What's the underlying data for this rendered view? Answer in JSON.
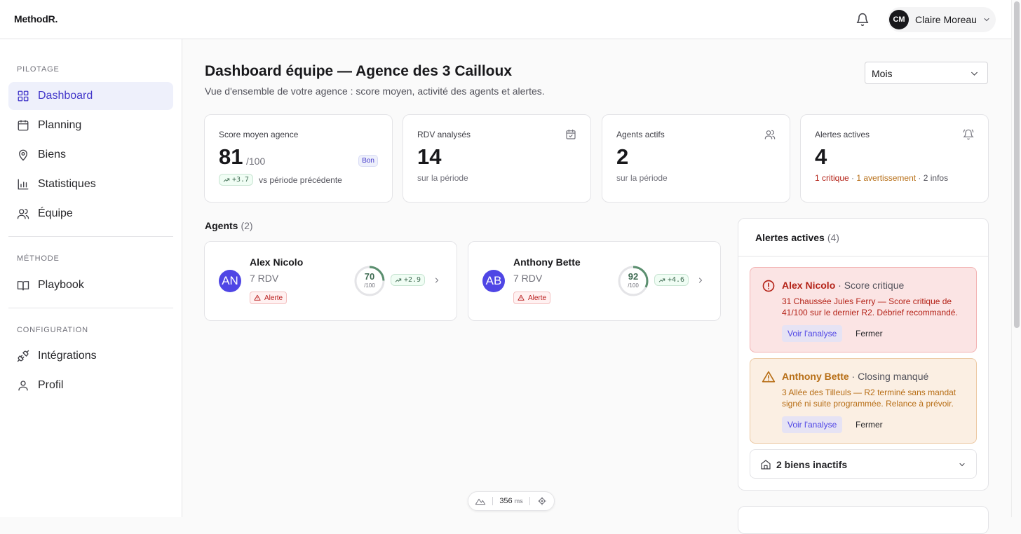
{
  "app": {
    "logo": "MethodR."
  },
  "user": {
    "initials": "CM",
    "name": "Claire Moreau"
  },
  "sidebar": {
    "sections": [
      {
        "label": "PILOTAGE"
      },
      {
        "label": "MÉTHODE"
      },
      {
        "label": "CONFIGURATION"
      }
    ],
    "items": [
      {
        "label": "Dashboard",
        "icon": "grid-icon",
        "active": true
      },
      {
        "label": "Planning",
        "icon": "calendar-icon"
      },
      {
        "label": "Biens",
        "icon": "map-pin-icon"
      },
      {
        "label": "Statistiques",
        "icon": "bar-chart-icon"
      },
      {
        "label": "Équipe",
        "icon": "users-icon"
      },
      {
        "label": "Playbook",
        "icon": "book-icon"
      },
      {
        "label": "Intégrations",
        "icon": "plug-icon"
      },
      {
        "label": "Profil",
        "icon": "user-icon"
      }
    ]
  },
  "page": {
    "title": "Dashboard équipe — Agence des 3 Cailloux",
    "subtitle": "Vue d'ensemble de votre agence : score moyen, activité des agents et alertes.",
    "period": "Mois"
  },
  "kpis": {
    "score": {
      "label": "Score moyen agence",
      "value": "81",
      "unit": "/100",
      "badge": "Bon",
      "trend": "+3.7",
      "trend_text": "vs période précédente"
    },
    "rdv": {
      "label": "RDV analysés",
      "value": "14",
      "sub": "sur la période"
    },
    "agents": {
      "label": "Agents actifs",
      "value": "2",
      "sub": "sur la période"
    },
    "alerts": {
      "label": "Alertes actives",
      "value": "4",
      "crit": "1 critique",
      "sep1": " · ",
      "warn": "1 avertissement",
      "sep2": " · ",
      "info": "2 infos"
    }
  },
  "agents": {
    "heading": "Agents",
    "count": "(2)",
    "list": [
      {
        "initials": "AN",
        "name": "Alex Nicolo",
        "rdv": "7 RDV",
        "alert": "Alerte",
        "score": "70",
        "score_unit": "/100",
        "score_fraction": 0.7,
        "trend": "+2.9"
      },
      {
        "initials": "AB",
        "name": "Anthony Bette",
        "rdv": "7 RDV",
        "alert": "Alerte",
        "score": "92",
        "score_unit": "/100",
        "score_fraction": 0.92,
        "trend": "+4.6"
      }
    ]
  },
  "alerts": {
    "heading": "Alertes actives",
    "count": "(4)",
    "items": [
      {
        "who": "Alex Nicolo",
        "kind": " · Score critique",
        "desc": "31 Chaussée Jules Ferry — Score critique de 41/100 sur le dernier R2. Débrief recommandé.",
        "action": "Voir l'analyse",
        "close": "Fermer"
      },
      {
        "who": "Anthony Bette",
        "kind": " · Closing manqué",
        "desc": "3 Allée des Tilleuls — R2 terminé sans mandat signé ni suite programmée. Relance à prévoir.",
        "action": "Voir l'analyse",
        "close": "Fermer"
      }
    ],
    "inactive": "2 biens inactifs"
  },
  "perf": {
    "value": "356",
    "unit": "ms"
  },
  "colors": {
    "accent": "#4f46e5",
    "critical": "#b42318",
    "warning": "#b76e16",
    "positive": "#3f6b52"
  }
}
